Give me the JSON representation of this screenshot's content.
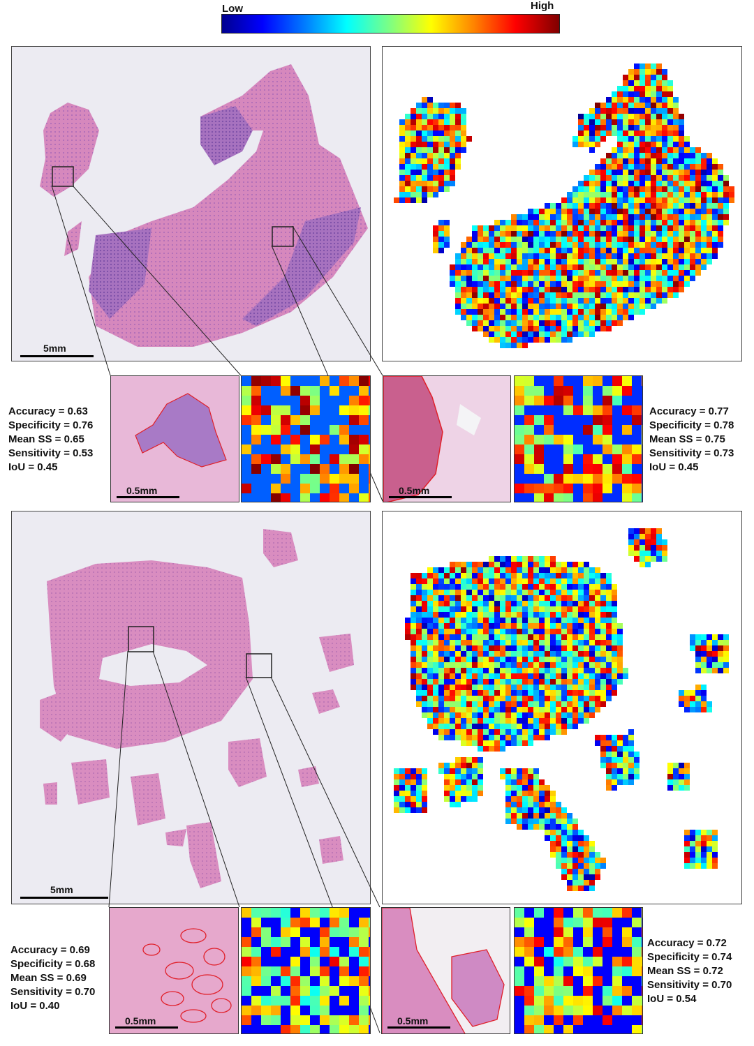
{
  "colorbar": {
    "low_label": "Low",
    "high_label": "High"
  },
  "cases": [
    {
      "scale_bar_label": "5mm",
      "zooms": [
        {
          "scale_bar_label": "0.5mm",
          "metrics": {
            "accuracy": "Accuracy = 0.63",
            "specificity": "Specificity = 0.76",
            "mean_ss": "Mean SS = 0.65",
            "sensitivity": "Sensitivity = 0.53",
            "iou": "IoU = 0.45"
          }
        },
        {
          "scale_bar_label": "0.5mm",
          "metrics": {
            "accuracy": "Accuracy = 0.77",
            "specificity": "Specificity = 0.78",
            "mean_ss": "Mean SS = 0.75",
            "sensitivity": "Sensitivity = 0.73",
            "iou": "IoU = 0.45"
          }
        }
      ]
    },
    {
      "scale_bar_label": "5mm",
      "zooms": [
        {
          "scale_bar_label": "0.5mm",
          "metrics": {
            "accuracy": "Accuracy = 0.69",
            "specificity": "Specificity = 0.68",
            "mean_ss": "Mean SS = 0.69",
            "sensitivity": "Sensitivity = 0.70",
            "iou": "IoU = 0.40"
          }
        },
        {
          "scale_bar_label": "0.5mm",
          "metrics": {
            "accuracy": "Accuracy = 0.72",
            "specificity": "Specificity = 0.74",
            "mean_ss": "Mean SS = 0.72",
            "sensitivity": "Sensitivity = 0.70",
            "iou": "IoU = 0.54"
          }
        }
      ]
    }
  ],
  "colors": {
    "tissue_pink": "#d98fc0",
    "tissue_purple": "#9a64b8",
    "slide_bg": "#ecebf2",
    "outline_red": "#e0202a"
  }
}
